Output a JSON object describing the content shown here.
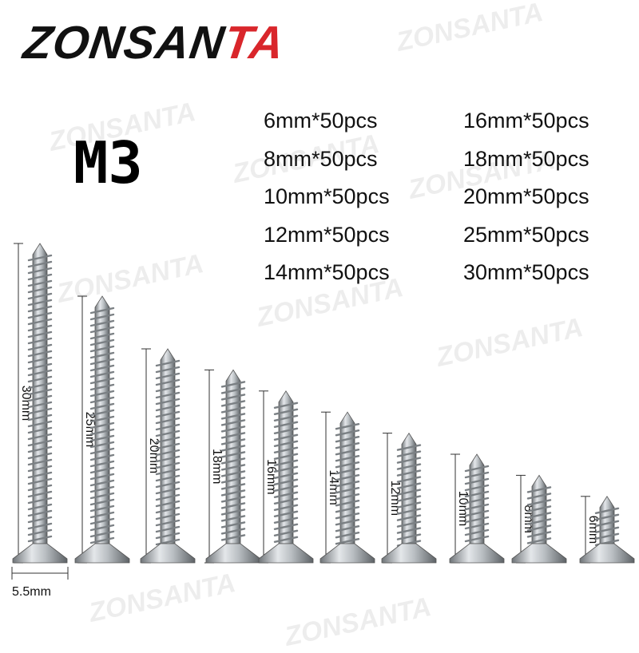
{
  "brand": {
    "main": "ZONSAN",
    "accent": "TA",
    "accent_color": "#d9262b"
  },
  "watermark": "ZONSANTA",
  "size_label": "M3",
  "packs_left": [
    "6mm*50pcs",
    "8mm*50pcs",
    "10mm*50pcs",
    "12mm*50pcs",
    "14mm*50pcs"
  ],
  "packs_right": [
    "16mm*50pcs",
    "18mm*50pcs",
    "20mm*50pcs",
    "25mm*50pcs",
    "30mm*50pcs"
  ],
  "screws": [
    {
      "length_mm": 30,
      "label": "30mm"
    },
    {
      "length_mm": 25,
      "label": "25mm"
    },
    {
      "length_mm": 20,
      "label": "20mm"
    },
    {
      "length_mm": 18,
      "label": "18mm"
    },
    {
      "length_mm": 16,
      "label": "16mm"
    },
    {
      "length_mm": 14,
      "label": "14mm"
    },
    {
      "length_mm": 12,
      "label": "12mm"
    },
    {
      "length_mm": 10,
      "label": "10mm"
    },
    {
      "length_mm": 8,
      "label": "8mm"
    },
    {
      "length_mm": 6,
      "label": "6mm"
    }
  ],
  "head_diameter": "5.5mm"
}
